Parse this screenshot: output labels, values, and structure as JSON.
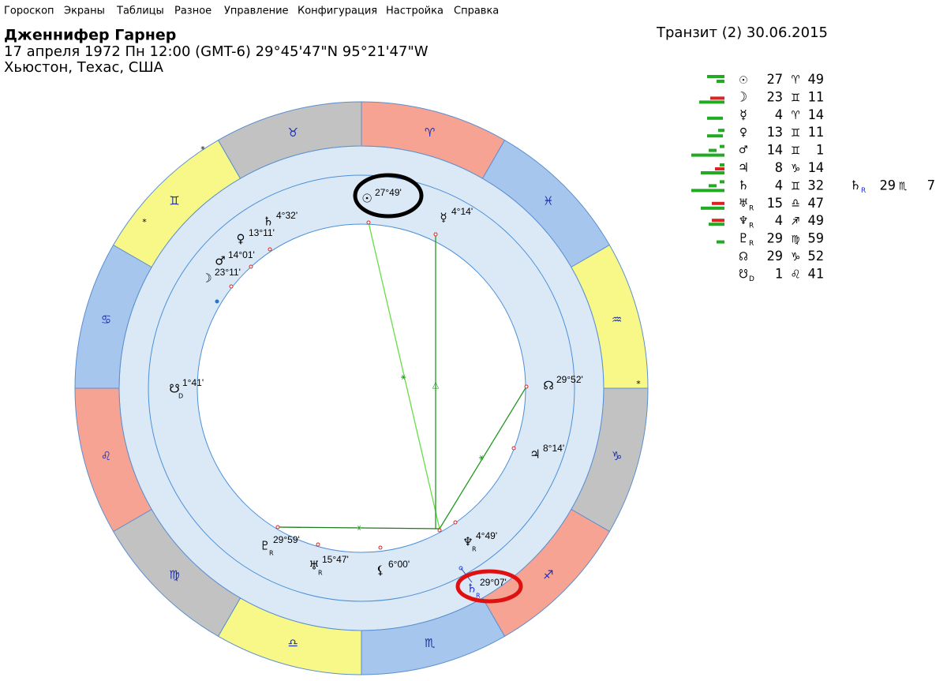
{
  "menu": [
    "Гороскоп",
    "Экраны",
    "Таблицы",
    "Разное",
    "Управление",
    "Конфигурация",
    "Настройка",
    "Справка"
  ],
  "header": {
    "name": "Дженнифер Гарнер",
    "details": "17 апреля 1972  Пн  12:00 (GMT-6) 29°45'47\"N  95°21'47\"W",
    "place": "Хьюстон, Техас, США",
    "transit": "Транзит (2) 30.06.2015"
  },
  "table": {
    "rows": [
      {
        "planet": "☉",
        "degree": 27,
        "sign": "♈",
        "minutes": 49
      },
      {
        "planet": "☽",
        "degree": 23,
        "sign": "♊",
        "minutes": 11
      },
      {
        "planet": "☿",
        "degree": 4,
        "sign": "♈",
        "minutes": 14
      },
      {
        "planet": "♀",
        "degree": 13,
        "sign": "♊",
        "minutes": 11
      },
      {
        "planet": "♂",
        "degree": 14,
        "sign": "♊",
        "minutes": 1
      },
      {
        "planet": "♃",
        "degree": 8,
        "sign": "♑",
        "minutes": 14
      },
      {
        "planet": "♄",
        "degree": 4,
        "sign": "♊",
        "minutes": 32
      },
      {
        "planet": "♅",
        "flag": "R",
        "degree": 15,
        "sign": "♎",
        "minutes": 47
      },
      {
        "planet": "♆",
        "flag": "R",
        "degree": 4,
        "sign": "♐",
        "minutes": 49
      },
      {
        "planet": "♇",
        "flag": "R",
        "degree": 29,
        "sign": "♍",
        "minutes": 59
      },
      {
        "planet": "☊",
        "degree": 29,
        "sign": "♑",
        "minutes": 52
      },
      {
        "planet": "☋",
        "flag": "D",
        "degree": 1,
        "sign": "♌",
        "minutes": 41
      }
    ],
    "transit": {
      "planet": "♄",
      "flag": "R",
      "degree": 29,
      "sign": "♏",
      "minutes": 7
    }
  },
  "wheel": {
    "signs": [
      "♈",
      "♓",
      "♒",
      "♑",
      "♐",
      "♏",
      "♎",
      "♍",
      "♌",
      "♋",
      "♊",
      "♉"
    ],
    "stars": [
      "*",
      "*",
      "*"
    ],
    "points": [
      {
        "glyph": "☉",
        "label": "27°49'"
      },
      {
        "glyph": "☿",
        "label": "4°14'"
      },
      {
        "glyph": "♄",
        "label": "4°32'"
      },
      {
        "glyph": "♀",
        "label": "13°11'"
      },
      {
        "glyph": "♂",
        "label": "14°01'"
      },
      {
        "glyph": "☽",
        "label": "23°11'"
      },
      {
        "glyph": "☋",
        "flag": "D",
        "label": "1°41'"
      },
      {
        "glyph": "☊",
        "label": "29°52'"
      },
      {
        "glyph": "♃",
        "label": "8°14'"
      },
      {
        "glyph": "♆",
        "flag": "R",
        "label": "4°49'"
      },
      {
        "glyph": "⚸",
        "label": "6°00'"
      },
      {
        "glyph": "♅",
        "flag": "R",
        "label": "15°47'"
      },
      {
        "glyph": "♇",
        "flag": "R",
        "label": "29°59'"
      },
      {
        "glyph": "♄",
        "flag": "R",
        "label": "29°07'"
      }
    ],
    "aspects": [
      "⚹",
      "△",
      "⚹",
      "⚹"
    ]
  }
}
